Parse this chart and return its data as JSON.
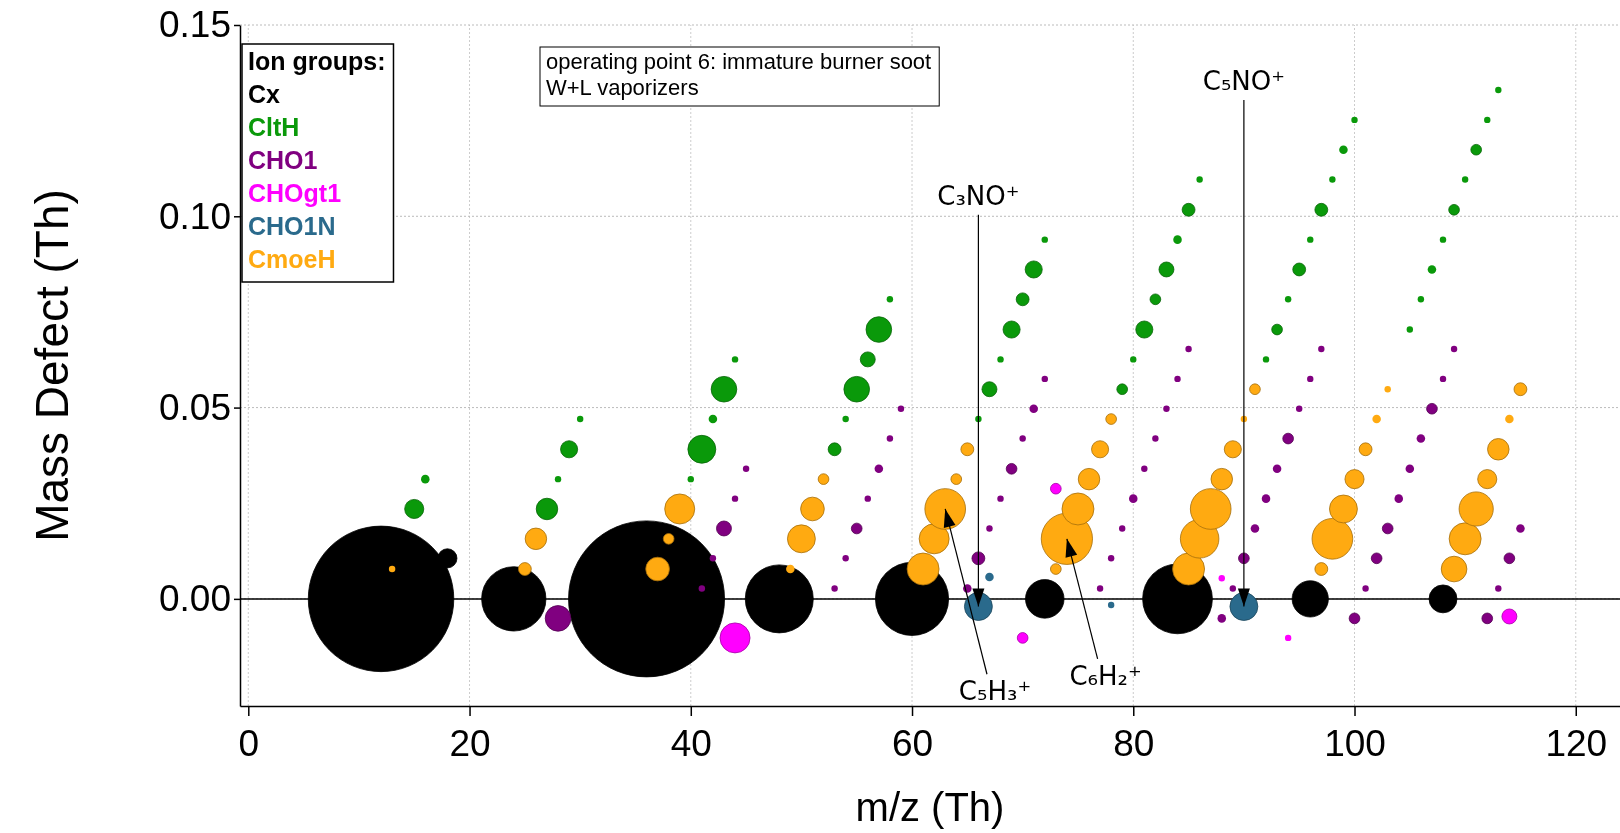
{
  "chart_data": {
    "type": "bubble",
    "xlabel": "m/z (Th)",
    "ylabel": "Mass Defect (Th)",
    "legend_title": "Ion groups:",
    "legend": "top left",
    "grid": true,
    "xlim": [
      -0.75,
      124
    ],
    "xticks": [
      0,
      20,
      40,
      60,
      80,
      100,
      120
    ],
    "ylim": [
      -0.028,
      0.15
    ],
    "yticks": [
      {
        "value": 0,
        "label": "0.00"
      },
      {
        "value": 0.05,
        "label": "0.05"
      },
      {
        "value": 0.1,
        "label": "0.10"
      },
      {
        "value": 0.15,
        "label": "0.15"
      }
    ],
    "ref_lines": [
      {
        "axis": "y",
        "value": 0,
        "color": "#000000"
      }
    ],
    "annotations": [
      "operating point 6: immature burner soot",
      "W+L vaporizers",
      {
        "text": "C₃NO⁺",
        "x": 66,
        "y": -0.002
      },
      {
        "text": "C₅NO⁺",
        "x": 90,
        "y": -0.002
      },
      {
        "text": "C₅H₃⁺",
        "x": 63,
        "y": 0.0235
      },
      {
        "text": "C₆H₂⁺",
        "x": 74,
        "y": 0.0157
      }
    ],
    "series": [
      {
        "name": "Cx",
        "color": "#000000",
        "x": [
          12,
          18,
          24,
          36,
          48,
          60,
          72,
          84,
          96,
          108
        ],
        "values": [
          0,
          0.0106,
          0,
          0,
          0,
          0,
          0,
          0,
          0,
          0
        ],
        "sizes": [
          0.87,
          0.015,
          0.17,
          1,
          0.19,
          0.22,
          0.061,
          0.2,
          0.054,
          0.032
        ]
      },
      {
        "name": "CltH",
        "color": "#0a990a",
        "x": [
          15,
          16,
          27,
          28,
          29,
          30,
          40,
          41,
          42,
          43,
          44,
          53,
          54,
          55,
          56,
          57,
          58,
          66,
          67,
          68,
          69,
          70,
          71,
          72,
          79,
          80,
          81,
          82,
          83,
          84,
          85,
          86,
          92,
          93,
          94,
          95,
          96,
          97,
          98,
          99,
          100,
          105,
          106,
          107,
          108,
          109,
          110,
          111,
          112,
          113
        ],
        "values": [
          0.0235,
          0.0313,
          0.0235,
          0.0313,
          0.0391,
          0.047,
          0.0313,
          0.0391,
          0.047,
          0.0548,
          0.0626,
          0.0391,
          0.047,
          0.0548,
          0.0626,
          0.0704,
          0.0783,
          0.047,
          0.0548,
          0.0626,
          0.0704,
          0.0783,
          0.0861,
          0.0939,
          0.0548,
          0.0626,
          0.0704,
          0.0783,
          0.0861,
          0.0939,
          0.1017,
          0.1096,
          0.0626,
          0.0704,
          0.0783,
          0.0861,
          0.0939,
          0.1017,
          0.1096,
          0.1174,
          0.1252,
          0.0704,
          0.0783,
          0.0861,
          0.0939,
          0.1017,
          0.1096,
          0.1174,
          0.1252,
          0.133
        ],
        "sizes": [
          0.015,
          0.003,
          0.019,
          0.0017,
          0.012,
          0.0017,
          0.0017,
          0.032,
          0.003,
          0.027,
          0.0017,
          0.0068,
          0.0017,
          0.027,
          0.0092,
          0.027,
          0.0017,
          0.0017,
          0.0092,
          0.0017,
          0.012,
          0.0068,
          0.012,
          0.0017,
          0.0047,
          0.0017,
          0.012,
          0.0047,
          0.0092,
          0.003,
          0.0068,
          0.0017,
          0.0017,
          0.0047,
          0.0017,
          0.0068,
          0.0017,
          0.0068,
          0.0017,
          0.003,
          0.0017,
          0.0017,
          0.0017,
          0.003,
          0.0017,
          0.0047,
          0.0017,
          0.0047,
          0.0017,
          0.0017
        ]
      },
      {
        "name": "CHO1",
        "color": "#800080",
        "x": [
          28,
          41,
          42,
          43,
          44,
          45,
          53,
          54,
          55,
          56,
          57,
          58,
          59,
          65,
          66,
          67,
          68,
          69,
          70,
          71,
          72,
          77,
          78,
          79,
          80,
          81,
          82,
          83,
          84,
          85,
          88,
          89,
          90,
          91,
          92,
          93,
          94,
          95,
          96,
          97,
          100,
          101,
          102,
          103,
          104,
          105,
          106,
          107,
          108,
          109,
          112,
          113,
          114,
          115
        ],
        "values": [
          -0.0051,
          0.0027,
          0.0106,
          0.0184,
          0.0262,
          0.034,
          0.0027,
          0.0106,
          0.0184,
          0.0262,
          0.034,
          0.0419,
          0.0497,
          0.0027,
          0.0106,
          0.0184,
          0.0262,
          0.034,
          0.0419,
          0.0497,
          0.0575,
          0.0027,
          0.0106,
          0.0184,
          0.0262,
          0.034,
          0.0419,
          0.0497,
          0.0575,
          0.0653,
          -0.0051,
          0.0027,
          0.0106,
          0.0184,
          0.0262,
          0.034,
          0.0419,
          0.0497,
          0.0575,
          0.0653,
          -0.0051,
          0.0027,
          0.0106,
          0.0184,
          0.0262,
          0.034,
          0.0419,
          0.0497,
          0.0575,
          0.0653,
          -0.0051,
          0.0027,
          0.0106,
          0.0184
        ],
        "sizes": [
          0.027,
          0.0017,
          0.0017,
          0.0092,
          0.0017,
          0.0017,
          0.0017,
          0.0017,
          0.0047,
          0.0017,
          0.003,
          0.0017,
          0.0017,
          0.003,
          0.0068,
          0.0017,
          0.0017,
          0.0047,
          0.0017,
          0.003,
          0.0017,
          0.0017,
          0.0017,
          0.0017,
          0.003,
          0.0017,
          0.0017,
          0.0017,
          0.0017,
          0.0017,
          0.003,
          0.0017,
          0.0047,
          0.003,
          0.003,
          0.003,
          0.0047,
          0.0017,
          0.0017,
          0.0017,
          0.0047,
          0.0017,
          0.0047,
          0.0047,
          0.003,
          0.003,
          0.003,
          0.0047,
          0.0017,
          0.0017,
          0.0047,
          0.0017,
          0.0047,
          0.003
        ]
      },
      {
        "name": "CHOgt1",
        "color": "#ff00ff",
        "x": [
          44,
          70,
          73,
          88,
          94,
          114
        ],
        "values": [
          -0.0102,
          -0.0102,
          0.0288,
          0.0054,
          -0.0102,
          -0.0046
        ],
        "sizes": [
          0.037,
          0.0047,
          0.0047,
          0.0017,
          0.0017,
          0.0092
        ]
      },
      {
        "name": "CHO1N",
        "color": "#2a6a8c",
        "x": [
          66,
          67,
          78,
          90
        ],
        "values": [
          -0.002,
          0.0057,
          -0.0016,
          -0.002
        ],
        "sizes": [
          0.032,
          0.003,
          0.0017,
          0.032
        ]
      },
      {
        "name": "CmoeH",
        "color": "#ffaa11",
        "x": [
          13,
          25,
          26,
          37,
          38,
          39,
          49,
          50,
          51,
          52,
          61,
          62,
          63,
          64,
          65,
          73,
          74,
          75,
          76,
          77,
          78,
          85,
          86,
          87,
          88,
          89,
          90,
          91,
          97,
          98,
          99,
          100,
          101,
          102,
          103,
          109,
          110,
          111,
          112,
          113,
          114,
          115
        ],
        "values": [
          0.0078,
          0.0078,
          0.0157,
          0.0078,
          0.0157,
          0.0235,
          0.0078,
          0.0157,
          0.0235,
          0.0313,
          0.0078,
          0.0157,
          0.0235,
          0.0313,
          0.0391,
          0.0078,
          0.0157,
          0.0235,
          0.0313,
          0.0391,
          0.047,
          0.0078,
          0.0157,
          0.0235,
          0.0313,
          0.0391,
          0.047,
          0.0548,
          0.0078,
          0.0157,
          0.0235,
          0.0313,
          0.0391,
          0.047,
          0.0548,
          0.0078,
          0.0157,
          0.0235,
          0.0313,
          0.0391,
          0.047,
          0.0548
        ],
        "sizes": [
          0.0017,
          0.0068,
          0.019,
          0.023,
          0.0047,
          0.037,
          0.003,
          0.032,
          0.023,
          0.0047,
          0.042,
          0.037,
          0.068,
          0.0047,
          0.0068,
          0.0047,
          0.108,
          0.042,
          0.019,
          0.012,
          0.0047,
          0.042,
          0.061,
          0.068,
          0.019,
          0.012,
          0.0017,
          0.0047,
          0.0068,
          0.068,
          0.032,
          0.015,
          0.0068,
          0.003,
          0.0017,
          0.027,
          0.042,
          0.048,
          0.015,
          0.019,
          0.003,
          0.0068
        ]
      }
    ]
  }
}
